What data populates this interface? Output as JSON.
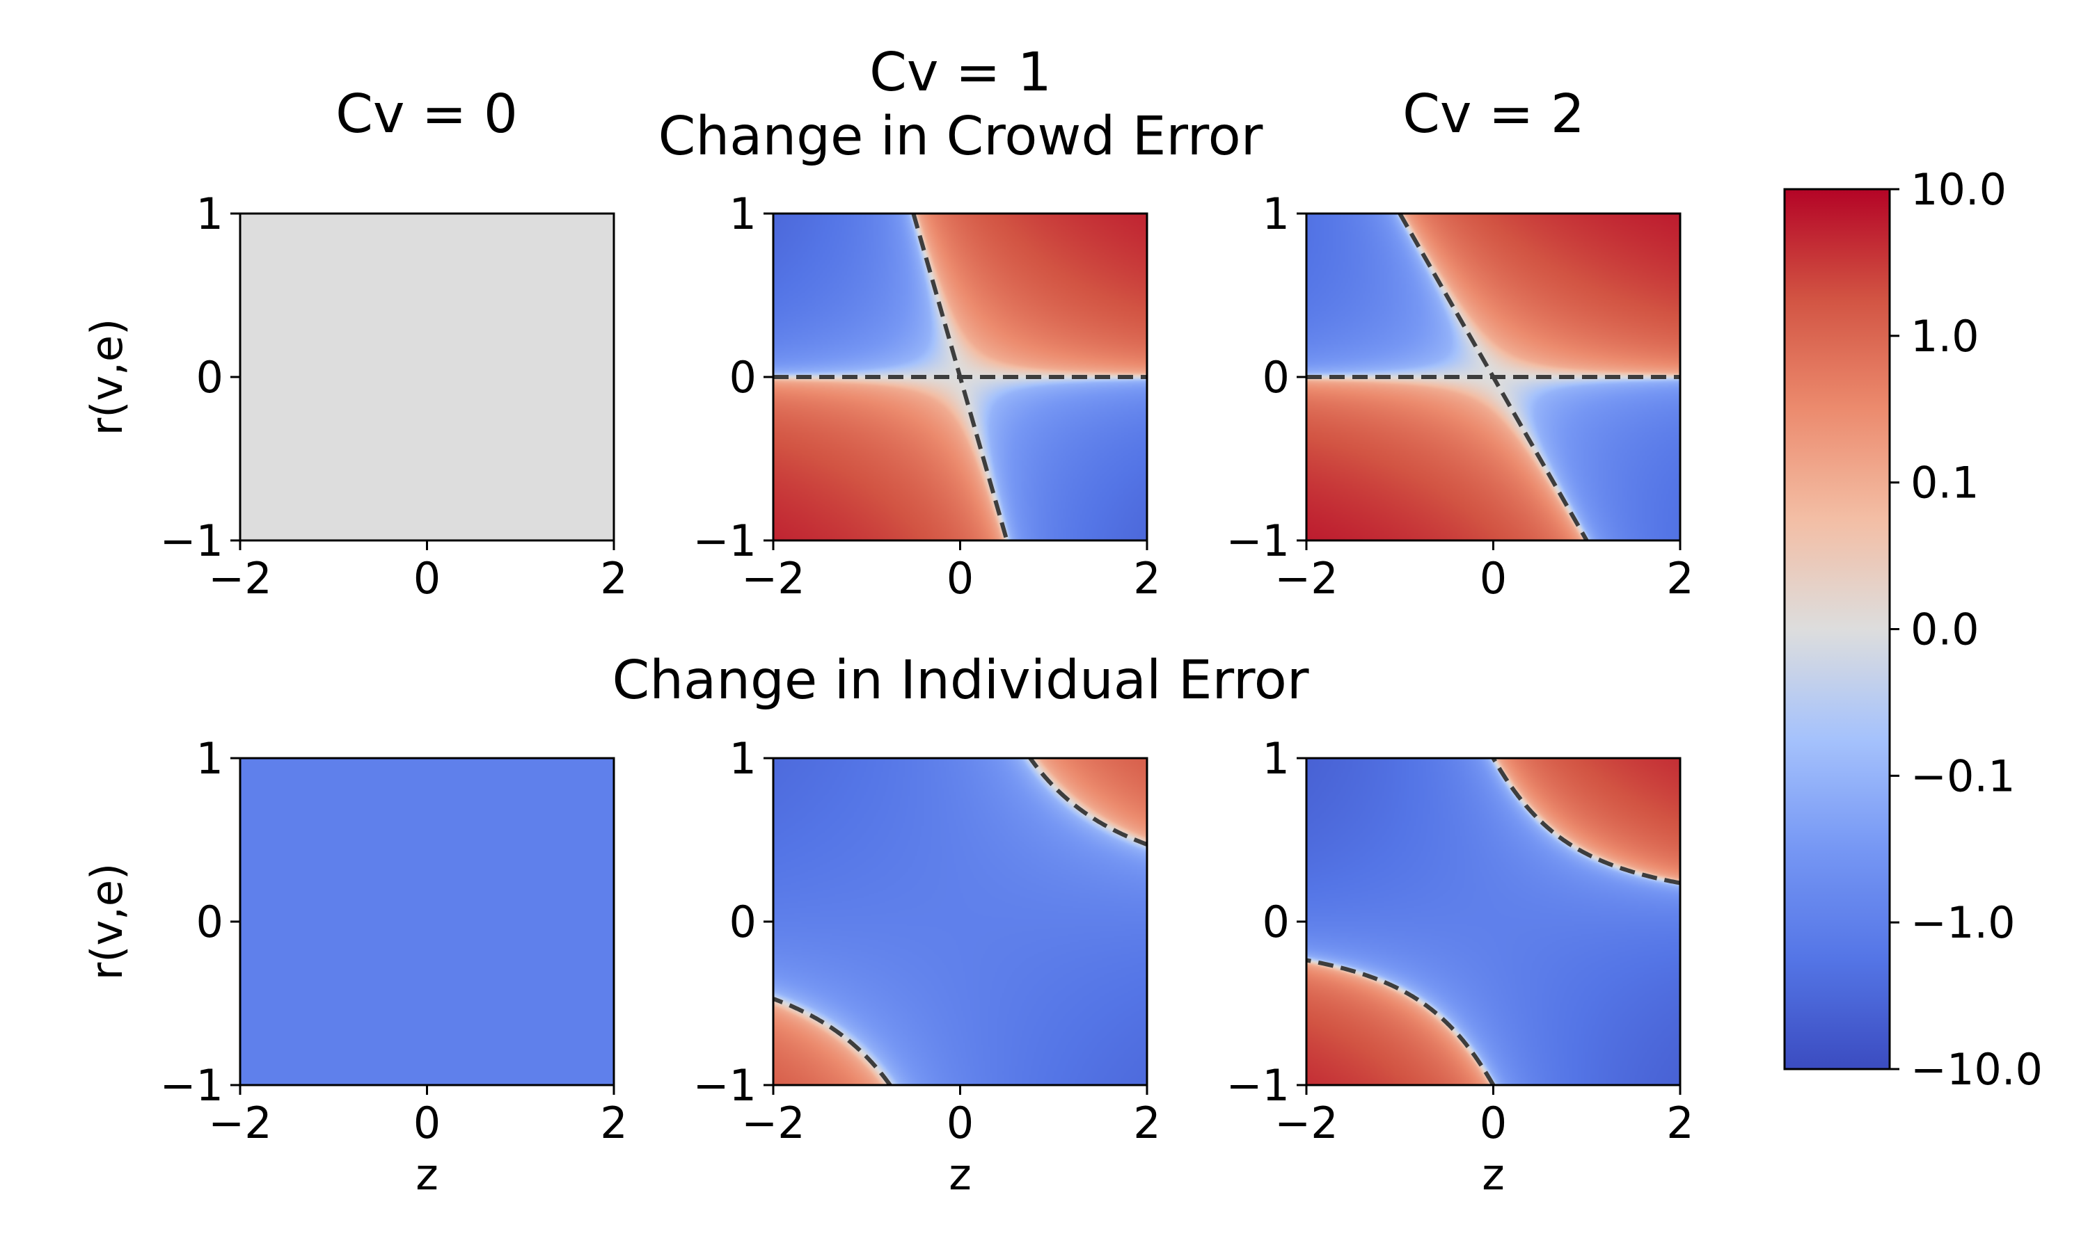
{
  "figure": {
    "row_titles": [
      "Change in Crowd Error",
      "Change in Individual Error"
    ],
    "column_titles": [
      "Cv = 0",
      "Cv = 1",
      "Cv = 2"
    ]
  },
  "chart_data": [
    {
      "type": "heatmap",
      "row": 0,
      "col": 0,
      "title": "Cv = 0",
      "quantity": "Change in Crowd Error",
      "cv": 0,
      "xlabel": "",
      "ylabel": "r(v,e)",
      "xlim": [
        -2,
        2
      ],
      "ylim": [
        -1,
        1
      ],
      "xticks": [
        "−2",
        "0",
        "2"
      ],
      "yticks": [
        "−1",
        "0",
        "1"
      ],
      "field": "0",
      "contour_level": 0,
      "contour_lines": []
    },
    {
      "type": "heatmap",
      "row": 0,
      "col": 1,
      "title": "Cv = 1",
      "quantity": "Change in Crowd Error",
      "cv": 1,
      "xlabel": "",
      "ylabel": "",
      "xlim": [
        -2,
        2
      ],
      "ylim": [
        -1,
        1
      ],
      "xticks": [
        "−2",
        "0",
        "2"
      ],
      "yticks": [
        "−1",
        "0",
        "1"
      ],
      "field": "2*r*(z + cv*r/2)",
      "contour_level": 0,
      "contour_lines": [
        "r = 0",
        "z = -cv*r/2"
      ]
    },
    {
      "type": "heatmap",
      "row": 0,
      "col": 2,
      "title": "Cv = 2",
      "quantity": "Change in Crowd Error",
      "cv": 2,
      "xlabel": "",
      "ylabel": "",
      "xlim": [
        -2,
        2
      ],
      "ylim": [
        -1,
        1
      ],
      "xticks": [
        "−2",
        "0",
        "2"
      ],
      "yticks": [
        "−1",
        "0",
        "1"
      ],
      "field": "2*r*(z + cv*r/2)",
      "contour_level": 0,
      "contour_lines": [
        "r = 0",
        "z = -cv*r/2"
      ]
    },
    {
      "type": "heatmap",
      "row": 1,
      "col": 0,
      "title": "",
      "quantity": "Change in Individual Error",
      "cv": 0,
      "xlabel": "z",
      "ylabel": "r(v,e)",
      "xlim": [
        -2,
        2
      ],
      "ylim": [
        -1,
        1
      ],
      "xticks": [
        "−2",
        "0",
        "2"
      ],
      "yticks": [
        "−1",
        "0",
        "1"
      ],
      "field": "-1",
      "contour_level": 0,
      "contour_lines": []
    },
    {
      "type": "heatmap",
      "row": 1,
      "col": 1,
      "title": "",
      "quantity": "Change in Individual Error",
      "cv": 1,
      "xlabel": "z",
      "ylabel": "",
      "xlim": [
        -2,
        2
      ],
      "ylim": [
        -1,
        1
      ],
      "xticks": [
        "−2",
        "0",
        "2"
      ],
      "yticks": [
        "−1",
        "0",
        "1"
      ],
      "field": "cv*(r*z + r*r*cv/4) - 1",
      "contour_level": 0,
      "contour_lines": [
        "cv*(r*z + r*r*cv/4) = 1"
      ]
    },
    {
      "type": "heatmap",
      "row": 1,
      "col": 2,
      "title": "",
      "quantity": "Change in Individual Error",
      "cv": 2,
      "xlabel": "z",
      "ylabel": "",
      "xlim": [
        -2,
        2
      ],
      "ylim": [
        -1,
        1
      ],
      "xticks": [
        "−2",
        "0",
        "2"
      ],
      "yticks": [
        "−1",
        "0",
        "1"
      ],
      "field": "cv*(r*z + r*r*cv/4) - 1",
      "contour_level": 0,
      "contour_lines": [
        "cv*(r*z + r*r*cv/4) = 1"
      ]
    }
  ],
  "colorbar": {
    "colormap": "coolwarm",
    "scale": "symlog",
    "linthresh": 0.1,
    "range": [
      -10,
      10
    ],
    "tick_values": [
      10,
      1,
      0.1,
      0,
      -0.1,
      -1,
      -10
    ],
    "tick_labels": [
      "10.0",
      "1.0",
      "0.1",
      "0.0",
      "−0.1",
      "−1.0",
      "−10.0"
    ],
    "colors": {
      "low": "#3b4cc0",
      "mid": "#dddddd",
      "high": "#b40426"
    }
  },
  "style": {
    "contour_color": "#3d3d3d",
    "contour_dash": "dashed"
  }
}
